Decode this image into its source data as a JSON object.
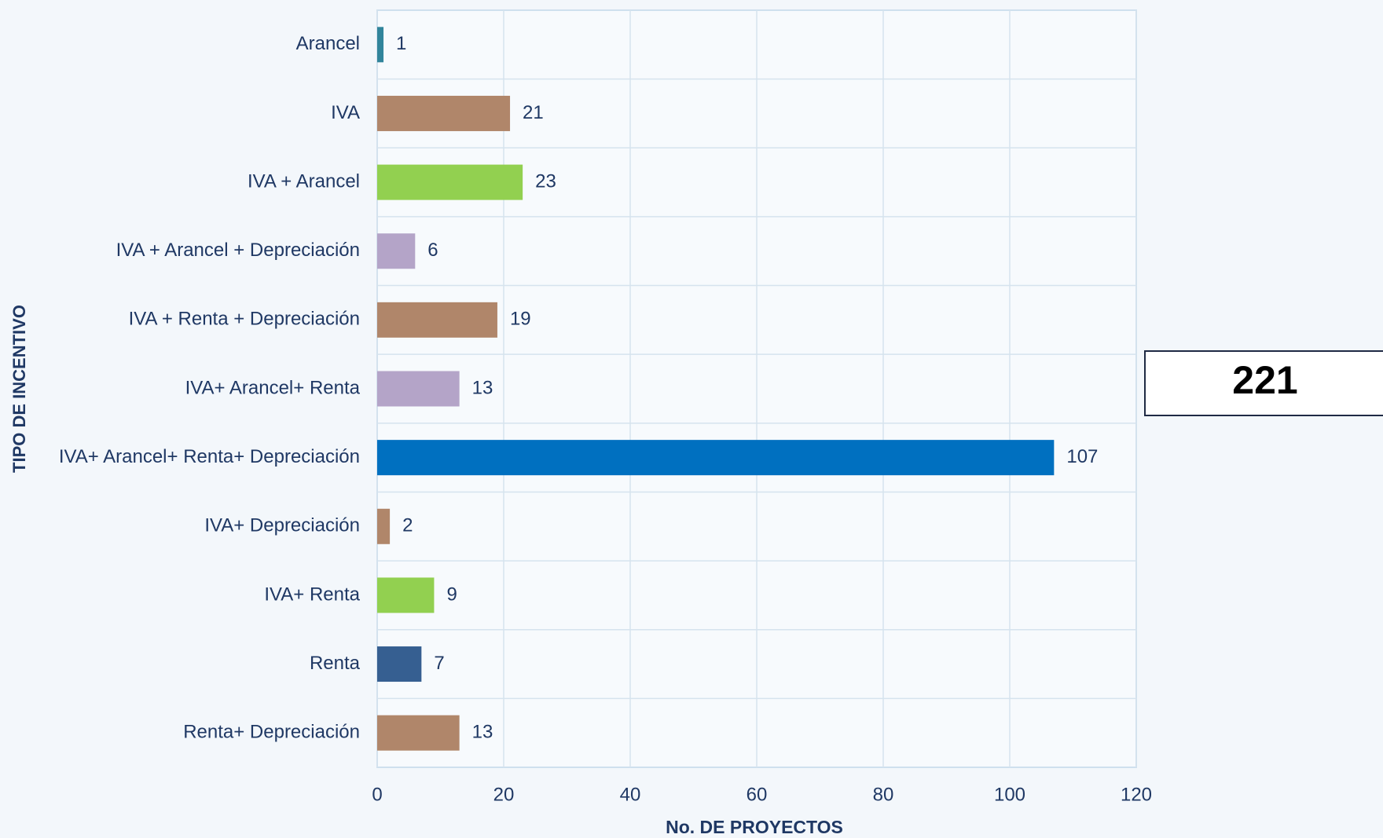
{
  "chart_data": {
    "type": "bar",
    "orientation": "horizontal",
    "categories": [
      "Arancel",
      "IVA",
      "IVA + Arancel",
      "IVA + Arancel + Depreciación",
      "IVA + Renta + Depreciación",
      "IVA+ Arancel+ Renta",
      "IVA+ Arancel+ Renta+ Depreciación",
      "IVA+ Depreciación",
      "IVA+ Renta",
      "Renta",
      "Renta+ Depreciación"
    ],
    "values": [
      1,
      21,
      23,
      6,
      19,
      13,
      107,
      2,
      9,
      7,
      13
    ],
    "colors": [
      "#31849b",
      "#b0866a",
      "#92d050",
      "#b4a4c8",
      "#b0866a",
      "#b4a4c8",
      "#0070c0",
      "#b0866a",
      "#92d050",
      "#365f91",
      "#b0866a"
    ],
    "xlim": [
      0,
      120
    ],
    "xticks": [
      0,
      20,
      40,
      60,
      80,
      100,
      120
    ],
    "grid": true,
    "xlabel": "No. DE PROYECTOS",
    "ylabel": "TIPO DE INCENTIVO",
    "total": "221"
  }
}
